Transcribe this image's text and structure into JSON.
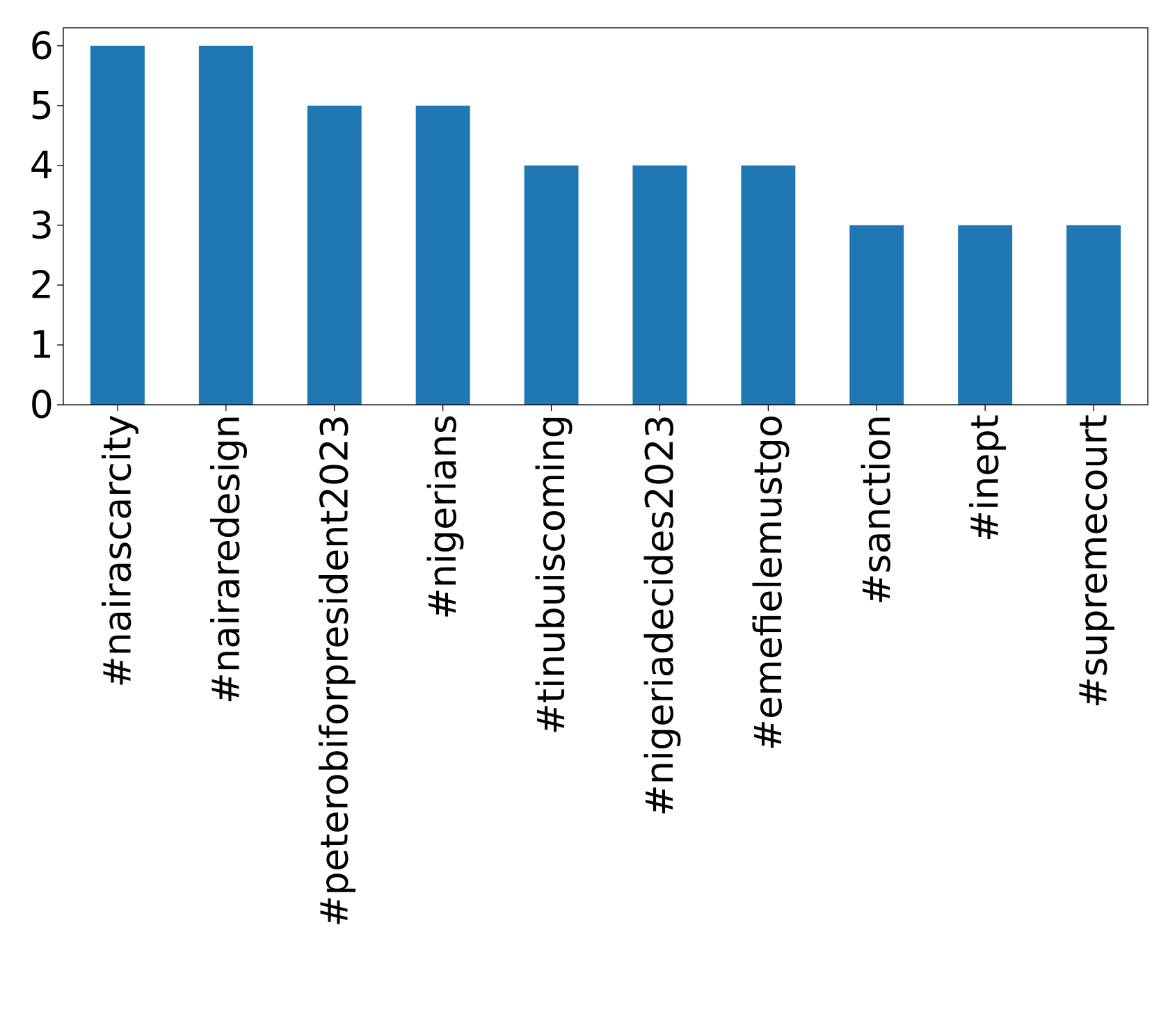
{
  "chart_data": {
    "type": "bar",
    "title": "",
    "xlabel": "",
    "ylabel": "",
    "categories": [
      "#nairascarcity",
      "#nairaredesign",
      "#peterobiforpresident2023",
      "#nigerians",
      "#tinubuiscoming",
      "#nigeriadecides2023",
      "#emefielemustgo",
      "#sanction",
      "#inept",
      "#supremecourt"
    ],
    "values": [
      6,
      6,
      5,
      5,
      4,
      4,
      4,
      3,
      3,
      3
    ],
    "ylim": [
      0,
      6.3
    ],
    "yticks": [
      0,
      1,
      2,
      3,
      4,
      5,
      6
    ],
    "x_tick_rotation": "vertical",
    "grid": false,
    "legend": "none",
    "bar_color": "#1f77b4"
  }
}
